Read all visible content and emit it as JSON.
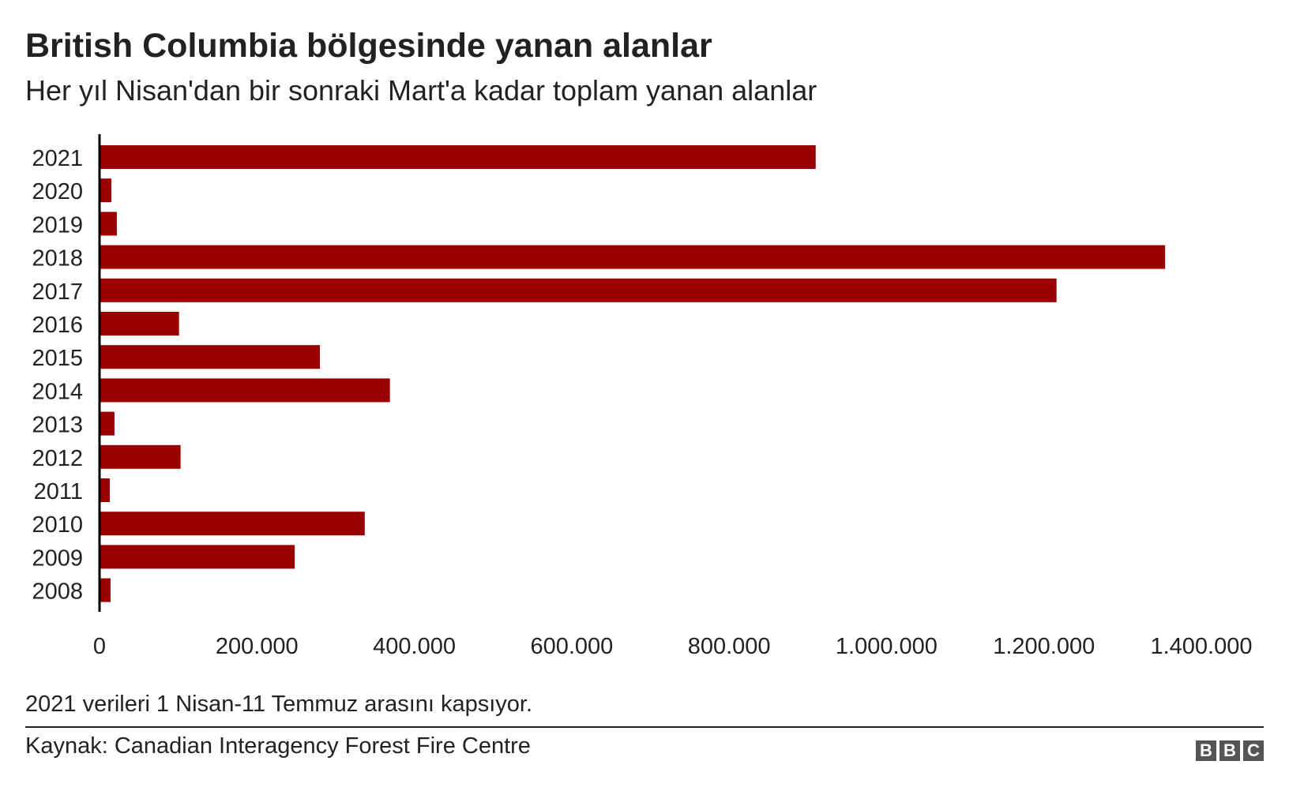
{
  "header": {
    "title": "British Columbia bölgesinde yanan alanlar",
    "subtitle": "Her yıl Nisan'dan bir sonraki Mart'a kadar toplam yanan alanlar"
  },
  "footer": {
    "note": "2021 verileri 1 Nisan-11 Temmuz arasını kapsıyor.",
    "source": "Kaynak: Canadian Interagency Forest Fire Centre",
    "logo_letters": [
      "B",
      "B",
      "C"
    ]
  },
  "colors": {
    "bar": "#990000",
    "axis": "#000000",
    "text": "#222222"
  },
  "chart_data": {
    "type": "bar",
    "orientation": "horizontal",
    "title": "British Columbia bölgesinde yanan alanlar",
    "subtitle": "Her yıl Nisan'dan bir sonraki Mart'a kadar toplam yanan alanlar",
    "categories": [
      "2021",
      "2020",
      "2019",
      "2018",
      "2017",
      "2016",
      "2015",
      "2014",
      "2013",
      "2012",
      "2011",
      "2010",
      "2009",
      "2008"
    ],
    "values": [
      910000,
      15000,
      22000,
      1354000,
      1216000,
      101000,
      280000,
      369000,
      19000,
      103000,
      13000,
      337000,
      248000,
      14000
    ],
    "xlim": [
      0,
      1400000
    ],
    "xticks": [
      0,
      200000,
      400000,
      600000,
      800000,
      1000000,
      1200000,
      1400000
    ],
    "xtick_labels": [
      "0",
      "200.000",
      "400.000",
      "600.000",
      "800.000",
      "1.000.000",
      "1.200.000",
      "1.400.000"
    ],
    "xlabel": "",
    "ylabel": "",
    "grid": false,
    "legend": "none"
  }
}
